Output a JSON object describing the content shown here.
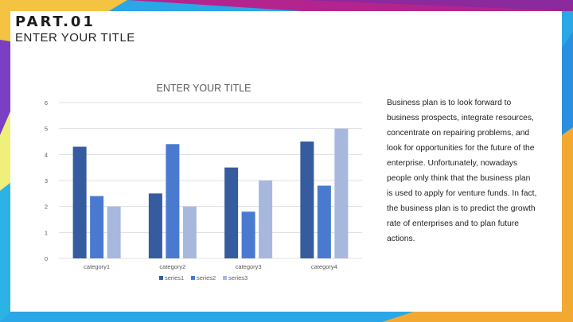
{
  "header": {
    "part": "PART.01",
    "subtitle": "ENTER YOUR TITLE"
  },
  "colors": {
    "series1": "#355c9e",
    "series2": "#4a7ad0",
    "series3": "#a8b7de",
    "grid": "#d9d9d9",
    "text": "#595959"
  },
  "chart_data": {
    "type": "bar",
    "title": "ENTER YOUR TITLE",
    "categories": [
      "category1",
      "category2",
      "category3",
      "category4"
    ],
    "series": [
      {
        "name": "series1",
        "values": [
          4.3,
          2.5,
          3.5,
          4.5
        ]
      },
      {
        "name": "series2",
        "values": [
          2.4,
          4.4,
          1.8,
          2.8
        ]
      },
      {
        "name": "series3",
        "values": [
          2.0,
          2.0,
          3.0,
          5.0
        ]
      }
    ],
    "yticks": [
      0,
      1,
      2,
      3,
      4,
      5,
      6
    ],
    "ylim": [
      0,
      6
    ],
    "grid": true,
    "legend": "bottom"
  },
  "body_text": "Business plan is to look forward to business prospects, integrate resources, concentrate on repairing problems, and look for opportunities for the future of the enterprise. Unfortunately, nowadays people only think that the business plan is used to apply for venture funds. In fact, the business plan is to predict the growth rate of enterprises and to plan future actions."
}
